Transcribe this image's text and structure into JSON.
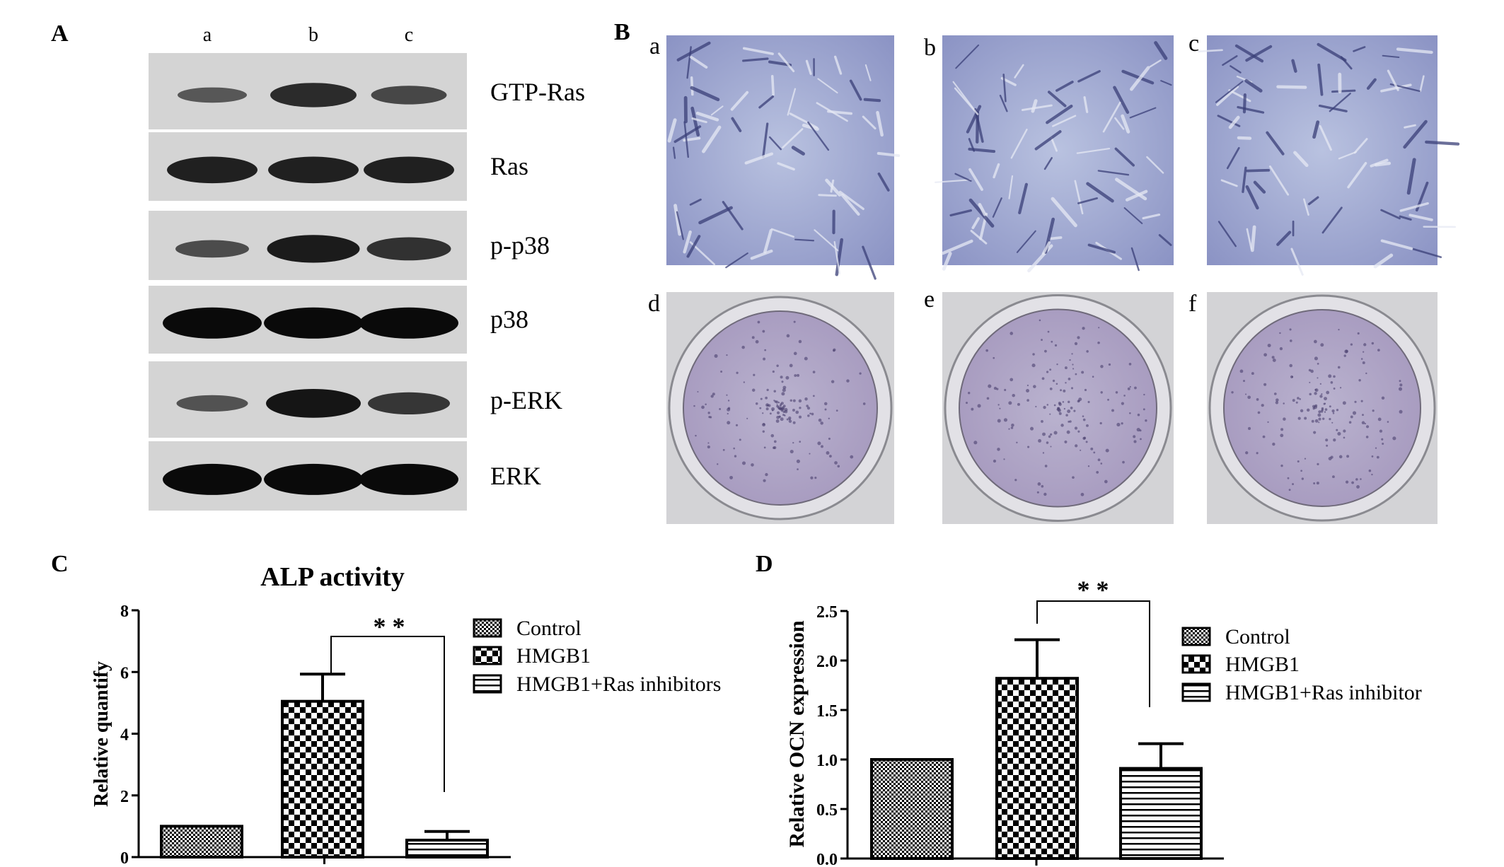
{
  "panel_labels": {
    "A": "A",
    "B": "B",
    "C": "C",
    "D": "D"
  },
  "panel_a": {
    "lane_labels": [
      "a",
      "b",
      "c"
    ],
    "blots": [
      {
        "label": "GTP-Ras",
        "intensities": [
          0.3,
          0.7,
          0.45
        ]
      },
      {
        "label": "Ras",
        "intensities": [
          0.8,
          0.8,
          0.8
        ]
      },
      {
        "label": "p-p38",
        "intensities": [
          0.4,
          0.85,
          0.65
        ]
      },
      {
        "label": "p38",
        "intensities": [
          1.0,
          1.0,
          1.0
        ]
      },
      {
        "label": "p-ERK",
        "intensities": [
          0.35,
          0.9,
          0.6
        ]
      },
      {
        "label": "ERK",
        "intensities": [
          1.0,
          1.0,
          1.0
        ]
      }
    ]
  },
  "panel_b": {
    "micro_labels": [
      "a",
      "b",
      "c"
    ],
    "well_labels": [
      "d",
      "e",
      "f"
    ]
  },
  "chart_data": [
    {
      "type": "bar",
      "title": "ALP activity",
      "xlabel": "",
      "ylabel": "Relative quantify",
      "ylim": [
        0,
        8
      ],
      "yticks": [
        "0",
        "2",
        "4",
        "6",
        "8"
      ],
      "categories": [
        "Control",
        "HMGB1",
        "HMGB1+Ras inhibitors"
      ],
      "series": [
        {
          "values": [
            1.0,
            5.05,
            0.55
          ],
          "errors": [
            0,
            0.88,
            0.28
          ]
        }
      ],
      "legend": [
        "Control",
        "HMGB1",
        "HMGB1+Ras inhibitors"
      ],
      "significance": "* *"
    },
    {
      "type": "bar",
      "title": "",
      "xlabel": "",
      "ylabel": "Relative OCN expression",
      "ylim": [
        0,
        2.5
      ],
      "yticks": [
        "0.0",
        "0.5",
        "1.0",
        "1.5",
        "2.0",
        "2.5"
      ],
      "categories": [
        "Control",
        "HMGB1",
        "HMGB1+Ras inhibitor"
      ],
      "series": [
        {
          "values": [
            1.0,
            1.82,
            0.91
          ],
          "errors": [
            0,
            0.39,
            0.25
          ]
        }
      ],
      "legend": [
        "Control",
        "HMGB1",
        "HMGB1+Ras inhibitor"
      ],
      "significance": "* *"
    }
  ]
}
